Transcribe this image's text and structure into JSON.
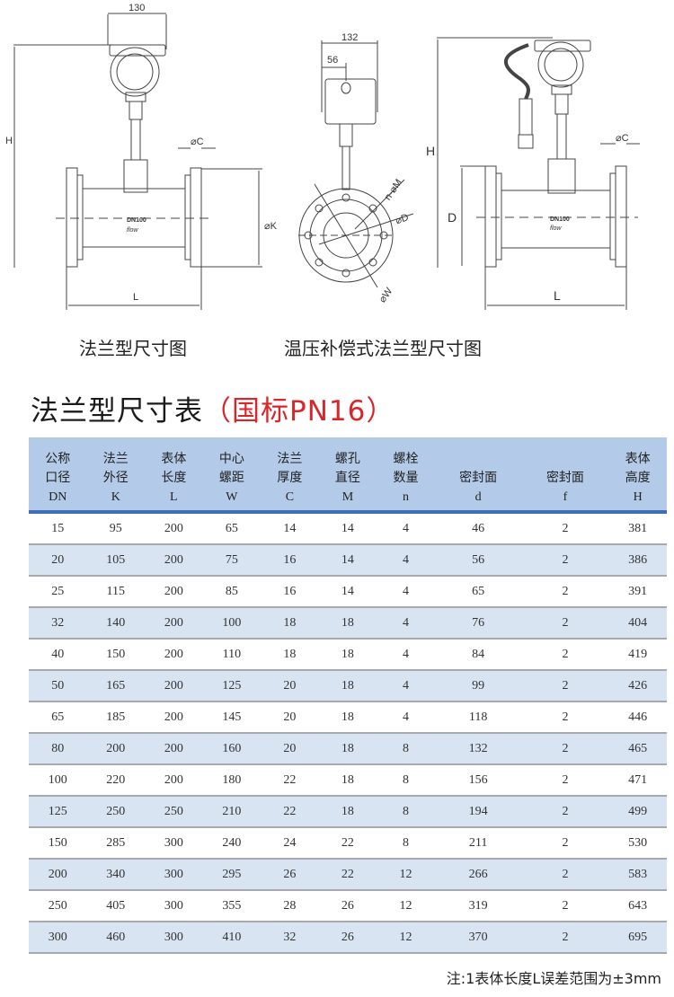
{
  "drawings": {
    "left": {
      "width_dim": "130",
      "height_dim": "H",
      "flange_dim": "⌀C",
      "k_dim": "⌀K",
      "length_dim": "L",
      "model": "DN100",
      "flow": "flow"
    },
    "middle": {
      "width_dim": "132",
      "offset_dim": "56",
      "holes_dim": "n-⌀M",
      "d_dim": "⌀D",
      "w_dim": "⌀W"
    },
    "right": {
      "height_dim": "H",
      "d_dim": "D",
      "flange_dim": "⌀C",
      "length_dim": "L",
      "model": "DN100",
      "flow": "flow"
    }
  },
  "captions": {
    "flange": "法兰型尺寸图",
    "compensated": "温压补偿式法兰型尺寸图"
  },
  "table_title": {
    "main": "法兰型尺寸表",
    "standard": "（国标PN16）"
  },
  "colors": {
    "header_bg": "#b3cbe8",
    "header_rule": "#3d70b8",
    "alt_row": "#d9e4f3",
    "accent_red": "#d8262b"
  },
  "table": {
    "headers": [
      {
        "l1": "公称",
        "l2": "口径",
        "sym": "DN"
      },
      {
        "l1": "法兰",
        "l2": "外径",
        "sym": "K"
      },
      {
        "l1": "表体",
        "l2": "长度",
        "sym": "L"
      },
      {
        "l1": "中心",
        "l2": "螺距",
        "sym": "W"
      },
      {
        "l1": "法兰",
        "l2": "厚度",
        "sym": "C"
      },
      {
        "l1": "螺孔",
        "l2": "直径",
        "sym": "M"
      },
      {
        "l1": "螺栓",
        "l2": "数量",
        "sym": "n"
      },
      {
        "l1": "",
        "l2": "密封面",
        "sym": "d"
      },
      {
        "l1": "",
        "l2": "密封面",
        "sym": "f"
      },
      {
        "l1": "表体",
        "l2": "高度",
        "sym": "H"
      }
    ],
    "rows": [
      [
        "15",
        "95",
        "200",
        "65",
        "14",
        "14",
        "4",
        "46",
        "2",
        "381"
      ],
      [
        "20",
        "105",
        "200",
        "75",
        "16",
        "14",
        "4",
        "56",
        "2",
        "386"
      ],
      [
        "25",
        "115",
        "200",
        "85",
        "16",
        "14",
        "4",
        "65",
        "2",
        "391"
      ],
      [
        "32",
        "140",
        "200",
        "100",
        "18",
        "18",
        "4",
        "76",
        "2",
        "404"
      ],
      [
        "40",
        "150",
        "200",
        "110",
        "18",
        "18",
        "4",
        "84",
        "2",
        "419"
      ],
      [
        "50",
        "165",
        "200",
        "125",
        "20",
        "18",
        "4",
        "99",
        "2",
        "426"
      ],
      [
        "65",
        "185",
        "200",
        "145",
        "20",
        "18",
        "4",
        "118",
        "2",
        "446"
      ],
      [
        "80",
        "200",
        "200",
        "160",
        "20",
        "18",
        "8",
        "132",
        "2",
        "465"
      ],
      [
        "100",
        "220",
        "200",
        "180",
        "22",
        "18",
        "8",
        "156",
        "2",
        "471"
      ],
      [
        "125",
        "250",
        "250",
        "210",
        "22",
        "18",
        "8",
        "194",
        "2",
        "499"
      ],
      [
        "150",
        "285",
        "300",
        "240",
        "24",
        "22",
        "8",
        "211",
        "2",
        "530"
      ],
      [
        "200",
        "340",
        "300",
        "295",
        "26",
        "22",
        "12",
        "266",
        "2",
        "583"
      ],
      [
        "250",
        "405",
        "300",
        "355",
        "28",
        "26",
        "12",
        "319",
        "2",
        "643"
      ],
      [
        "300",
        "460",
        "300",
        "410",
        "32",
        "26",
        "12",
        "370",
        "2",
        "695"
      ]
    ]
  },
  "note": "注:1表体长度L误差范围为±3mm"
}
